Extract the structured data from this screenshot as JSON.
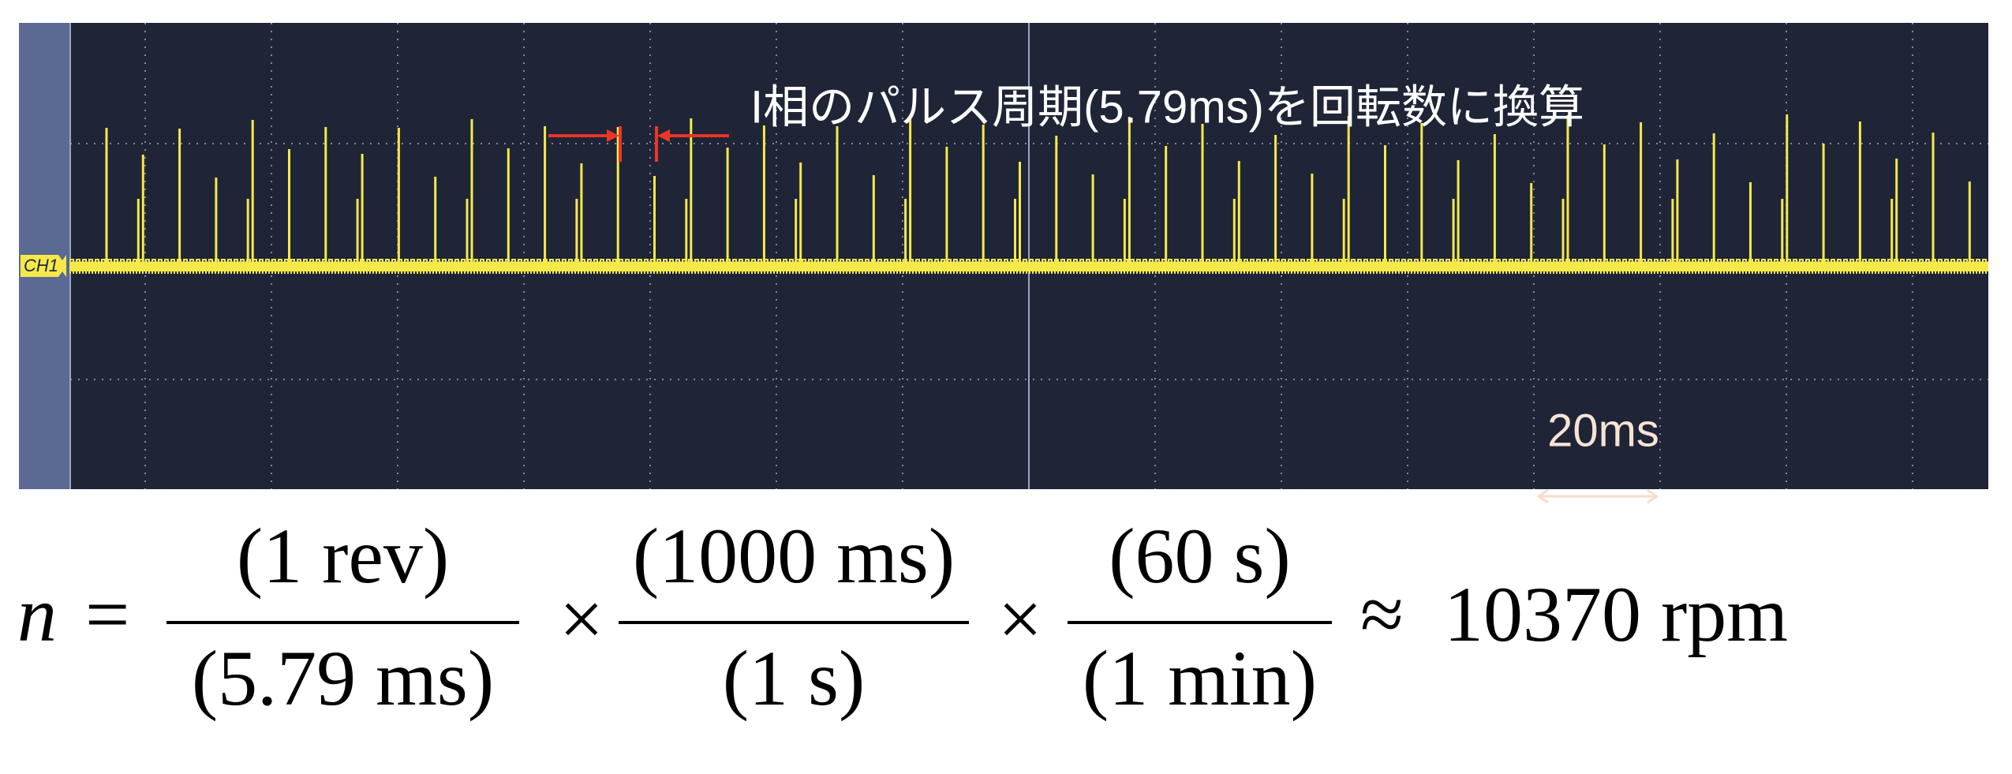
{
  "scope": {
    "channel_label": "CH1",
    "annotation": "I相のパルス周期(5.79ms)を回転数に換算",
    "scale_label": "20ms"
  },
  "formula": {
    "lhs": "n",
    "equals": "=",
    "fractions": [
      {
        "numerator": "(1 rev)",
        "denominator": "(5.79 ms)"
      },
      {
        "numerator": "(1000 ms)",
        "denominator": "(1 s)"
      },
      {
        "numerator": "(60 s)",
        "denominator": "(1 min)"
      }
    ],
    "times": "×",
    "approx": "≈",
    "result": "10370 rpm"
  }
}
